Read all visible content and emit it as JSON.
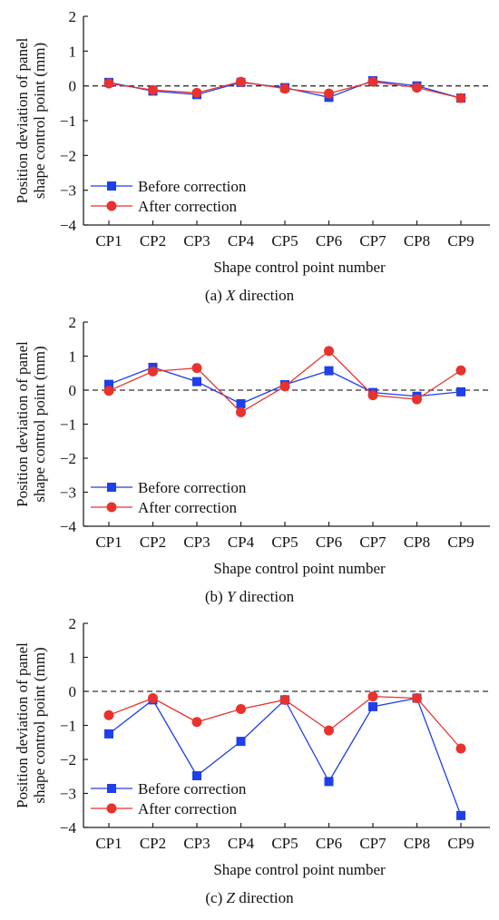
{
  "figure": {
    "panels": [
      {
        "caption_prefix": "(a) ",
        "caption_axis": "X",
        "caption_suffix": " direction"
      },
      {
        "caption_prefix": "(b) ",
        "caption_axis": "Y",
        "caption_suffix": " direction"
      },
      {
        "caption_prefix": "(c) ",
        "caption_axis": "Z",
        "caption_suffix": " direction"
      }
    ],
    "colors": {
      "before": "#1f3fe8",
      "after": "#e8322e",
      "axis": "#222222",
      "reference_line": "#333333",
      "last_tick_label": "#8a8a8a"
    }
  },
  "chart_data": [
    {
      "type": "line",
      "categories": [
        "CP1",
        "CP2",
        "CP3",
        "CP4",
        "CP5",
        "CP6",
        "CP7",
        "CP8",
        "CP9"
      ],
      "series": [
        {
          "name": "Before correction",
          "marker": "square",
          "values": [
            0.1,
            -0.15,
            -0.25,
            0.1,
            -0.05,
            -0.33,
            0.15,
            0.0,
            -0.35
          ]
        },
        {
          "name": "After correction",
          "marker": "circle",
          "values": [
            0.07,
            -0.12,
            -0.2,
            0.12,
            -0.08,
            -0.22,
            0.12,
            -0.05,
            -0.35
          ]
        }
      ],
      "xlabel": "Shape control point number",
      "ylabel_lines": [
        "Position deviation of panel",
        "shape control point (mm)"
      ],
      "ylim": [
        -4,
        2
      ],
      "yticks": [
        "2",
        "1",
        "0",
        "−1",
        "−2",
        "−3",
        "−4"
      ],
      "ytick_values": [
        2,
        1,
        0,
        -1,
        -2,
        -3,
        -4
      ],
      "reference_line_y": 0,
      "grid": false,
      "legend_position": "bottom-left"
    },
    {
      "type": "line",
      "categories": [
        "CP1",
        "CP2",
        "CP3",
        "CP4",
        "CP5",
        "CP6",
        "CP7",
        "CP8",
        "CP9"
      ],
      "series": [
        {
          "name": "Before correction",
          "marker": "square",
          "values": [
            0.17,
            0.67,
            0.25,
            -0.4,
            0.16,
            0.57,
            -0.07,
            -0.18,
            -0.05
          ]
        },
        {
          "name": "After correction",
          "marker": "circle",
          "values": [
            -0.02,
            0.55,
            0.65,
            -0.65,
            0.11,
            1.15,
            -0.15,
            -0.27,
            0.58
          ]
        }
      ],
      "xlabel": "Shape control point number",
      "ylabel_lines": [
        "Position deviation of panel",
        "shape control point (mm)"
      ],
      "ylim": [
        -4,
        2
      ],
      "yticks": [
        "2",
        "1",
        "0",
        "−1",
        "−2",
        "−3",
        "−4"
      ],
      "ytick_values": [
        2,
        1,
        0,
        -1,
        -2,
        -3,
        -4
      ],
      "reference_line_y": 0,
      "grid": false,
      "legend_position": "bottom-left"
    },
    {
      "type": "line",
      "categories": [
        "CP1",
        "CP2",
        "CP3",
        "CP4",
        "CP5",
        "CP6",
        "CP7",
        "CP8",
        "CP9"
      ],
      "series": [
        {
          "name": "Before correction",
          "marker": "square",
          "values": [
            -1.25,
            -0.25,
            -2.48,
            -1.47,
            -0.25,
            -2.65,
            -0.45,
            -0.2,
            -3.65
          ]
        },
        {
          "name": "After correction",
          "marker": "circle",
          "values": [
            -0.7,
            -0.2,
            -0.9,
            -0.52,
            -0.25,
            -1.15,
            -0.15,
            -0.2,
            -1.68
          ]
        }
      ],
      "xlabel": "Shape control point number",
      "ylabel_lines": [
        "Position deviation of panel",
        "shape control point (mm)"
      ],
      "ylim": [
        -4,
        2
      ],
      "yticks": [
        "2",
        "1",
        "0",
        "−1",
        "−2",
        "−3",
        "−4"
      ],
      "ytick_values": [
        2,
        1,
        0,
        -1,
        -2,
        -3,
        -4
      ],
      "reference_line_y": 0,
      "grid": false,
      "legend_position": "bottom-left"
    }
  ]
}
